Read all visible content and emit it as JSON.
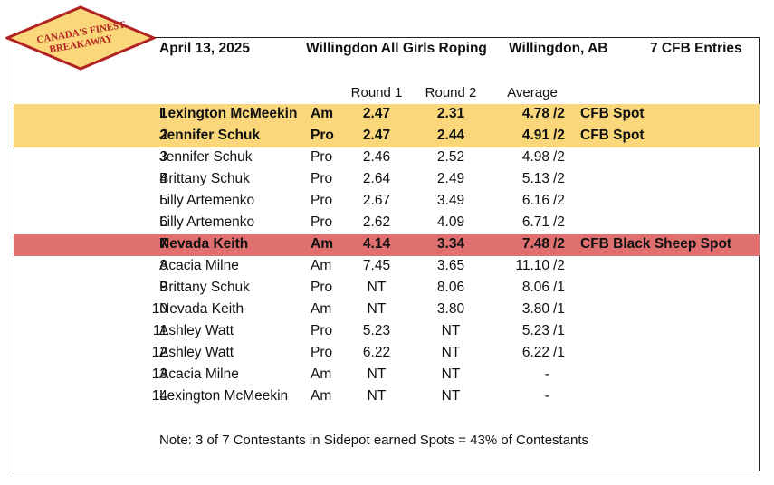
{
  "logo": {
    "line1": "CANADA'S FINEST",
    "line2": "BREAKAWAY",
    "fill": "#f9d77a",
    "border": "#b22222",
    "text_color": "#b22222"
  },
  "header": {
    "date": "April 13, 2025",
    "event": "Willingdon All Girls Roping",
    "location": "Willingdon, AB",
    "entries": "7 CFB Entries"
  },
  "columns": {
    "round1": "Round 1",
    "round2": "Round 2",
    "average": "Average"
  },
  "colors": {
    "spot_highlight": "#f9d77a",
    "black_sheep_highlight": "#e07070"
  },
  "rows": [
    {
      "rank": "1",
      "name": "Lexington McMeekin",
      "division": "Am",
      "r1": "2.47",
      "r2": "2.31",
      "avg": "4.78",
      "count": "/2",
      "spot": "CFB Spot"
    },
    {
      "rank": "2",
      "name": "Jennifer Schuk",
      "division": "Pro",
      "r1": "2.47",
      "r2": "2.44",
      "avg": "4.91",
      "count": "/2",
      "spot": "CFB Spot"
    },
    {
      "rank": "3",
      "name": "Jennifer Schuk",
      "division": "Pro",
      "r1": "2.46",
      "r2": "2.52",
      "avg": "4.98",
      "count": "/2",
      "spot": ""
    },
    {
      "rank": "4",
      "name": "Brittany Schuk",
      "division": "Pro",
      "r1": "2.64",
      "r2": "2.49",
      "avg": "5.13",
      "count": "/2",
      "spot": ""
    },
    {
      "rank": "5",
      "name": "Lilly Artemenko",
      "division": "Pro",
      "r1": "2.67",
      "r2": "3.49",
      "avg": "6.16",
      "count": "/2",
      "spot": ""
    },
    {
      "rank": "6",
      "name": "Lilly Artemenko",
      "division": "Pro",
      "r1": "2.62",
      "r2": "4.09",
      "avg": "6.71",
      "count": "/2",
      "spot": ""
    },
    {
      "rank": "7",
      "name": "Nevada Keith",
      "division": "Am",
      "r1": "4.14",
      "r2": "3.34",
      "avg": "7.48",
      "count": "/2",
      "spot": "CFB Black Sheep Spot"
    },
    {
      "rank": "8",
      "name": "Acacia Milne",
      "division": "Am",
      "r1": "7.45",
      "r2": "3.65",
      "avg": "11.10",
      "count": "/2",
      "spot": ""
    },
    {
      "rank": "9",
      "name": "Brittany Schuk",
      "division": "Pro",
      "r1": "NT",
      "r2": "8.06",
      "avg": "8.06",
      "count": "/1",
      "spot": ""
    },
    {
      "rank": "10",
      "name": "Nevada Keith",
      "division": "Am",
      "r1": "NT",
      "r2": "3.80",
      "avg": "3.80",
      "count": "/1",
      "spot": ""
    },
    {
      "rank": "11",
      "name": "Ashley Watt",
      "division": "Pro",
      "r1": "5.23",
      "r2": "NT",
      "avg": "5.23",
      "count": "/1",
      "spot": ""
    },
    {
      "rank": "12",
      "name": "Ashley Watt",
      "division": "Pro",
      "r1": "6.22",
      "r2": "NT",
      "avg": "6.22",
      "count": "/1",
      "spot": ""
    },
    {
      "rank": "13",
      "name": "Acacia Milne",
      "division": "Am",
      "r1": "NT",
      "r2": "NT",
      "avg": "-",
      "count": "",
      "spot": ""
    },
    {
      "rank": "14",
      "name": "Lexington McMeekin",
      "division": "Am",
      "r1": "NT",
      "r2": "NT",
      "avg": "-",
      "count": "",
      "spot": ""
    }
  ],
  "note": "Note: 3 of 7 Contestants in Sidepot earned Spots = 43% of Contestants"
}
